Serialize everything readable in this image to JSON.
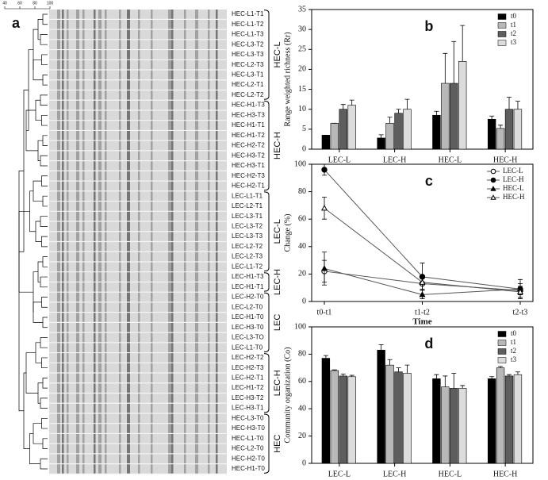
{
  "panel_a": {
    "label": "a",
    "scale_ticks": [
      40,
      60,
      80,
      100
    ],
    "lanes": [
      "HEC-L1-T1",
      "HEC-L1-T2",
      "HEC-L1-T3",
      "HEC-L3-T2",
      "HEC-L3-T3",
      "HEC-L2-T3",
      "HEC-L3-T1",
      "HEC-L2-T1",
      "HEC-L2-T2",
      "HEC-H1-T3",
      "HEC-H3-T3",
      "HEC-H1-T1",
      "HEC-H1-T2",
      "HEC-H2-T2",
      "HEC-H3-T2",
      "HEC-H3-T1",
      "HEC-H2-T3",
      "HEC-H2-T1",
      "LEC-L1-T1",
      "LEC-L2-T1",
      "LEC-L3-T1",
      "LEC-L3-T2",
      "LEC-L3-T3",
      "LEC-L2-T2",
      "LEC-L2-T3",
      "LEC-L1-T2",
      "LEC-H1-T3",
      "LEC-H1-T1",
      "LEC-H2-T0",
      "LEC-L2-T0",
      "LEC-H1-T0",
      "LEC-H3-T0",
      "LEC-L3-TO",
      "LEC-L1-T0",
      "LEC-H2-T2",
      "LEC-H2-T3",
      "LEC-H2-T1",
      "LEC-H1-T2",
      "LEC-H3-T2",
      "LEC-H3-T1",
      "HEC-L3-T0",
      "HEC-H3-T0",
      "HEC-L1-T0",
      "HEC-L2-T0",
      "HEC-H2-T0",
      "HEC-H1-T0"
    ],
    "groups": [
      "HEC-L",
      "HEC-H",
      "LEC-L",
      "LEC-H",
      "LEC",
      "LEC-H",
      "HEC"
    ]
  },
  "chart_data": [
    {
      "type": "bar",
      "label": "b",
      "ylabel": "Range weighted richness (Rr)",
      "categories": [
        "LEC-L",
        "LEC-H",
        "HEC-L",
        "HEC-H"
      ],
      "ylim": [
        0,
        35
      ],
      "yticks": [
        0,
        5,
        10,
        15,
        20,
        25,
        30,
        35
      ],
      "legend": "upper right",
      "series": [
        {
          "name": "t0",
          "color": "#000000",
          "values": [
            3.5,
            2.8,
            8.5,
            7.5
          ],
          "errors": [
            0,
            0.8,
            1,
            0.8
          ]
        },
        {
          "name": "t1",
          "color": "#b8b8b8",
          "values": [
            6.5,
            6.5,
            16.5,
            5.2
          ],
          "errors": [
            0,
            1.5,
            7.5,
            0.8
          ]
        },
        {
          "name": "t2",
          "color": "#5e5e5e",
          "values": [
            10,
            9,
            16.5,
            10
          ],
          "errors": [
            1.2,
            1,
            10.5,
            3
          ]
        },
        {
          "name": "t3",
          "color": "#dcdcdc",
          "values": [
            11,
            10,
            22,
            10
          ],
          "errors": [
            1.3,
            2.5,
            9,
            2
          ]
        }
      ]
    },
    {
      "type": "line",
      "label": "c",
      "ylabel": "Change (%)",
      "xlabel": "Time",
      "categories": [
        "t0-t1",
        "t1-t2",
        "t2-t3"
      ],
      "ylim": [
        0,
        100
      ],
      "yticks": [
        0,
        20,
        40,
        60,
        80,
        100
      ],
      "legend": "upper right",
      "series": [
        {
          "name": "LEC-L",
          "color": "#000000",
          "marker": "circle",
          "filled": false,
          "values": [
            22,
            13,
            8
          ],
          "errors": [
            8,
            5,
            3
          ]
        },
        {
          "name": "LEC-H",
          "color": "#000000",
          "marker": "circle",
          "filled": true,
          "values": [
            96,
            18,
            9
          ],
          "errors": [
            4,
            10,
            4
          ]
        },
        {
          "name": "HEC-L",
          "color": "#000000",
          "marker": "triangle",
          "filled": true,
          "values": [
            24,
            5,
            9
          ],
          "errors": [
            12,
            3,
            7
          ]
        },
        {
          "name": "HEC-H",
          "color": "#000000",
          "marker": "triangle",
          "filled": false,
          "values": [
            68,
            14,
            7
          ],
          "errors": [
            8,
            5,
            4
          ]
        }
      ]
    },
    {
      "type": "bar",
      "label": "d",
      "ylabel": "Community organization (Co)",
      "categories": [
        "LEC-L",
        "LEC-H",
        "HEC-L",
        "HEC-H"
      ],
      "ylim": [
        0,
        100
      ],
      "yticks": [
        0,
        20,
        40,
        60,
        80,
        100
      ],
      "legend": "upper right",
      "series": [
        {
          "name": "t0",
          "color": "#000000",
          "values": [
            77,
            83,
            62,
            62
          ],
          "errors": [
            2,
            4,
            3,
            1.5
          ]
        },
        {
          "name": "t1",
          "color": "#b8b8b8",
          "values": [
            68,
            72,
            56,
            70
          ],
          "errors": [
            0.5,
            4,
            8,
            1
          ]
        },
        {
          "name": "t2",
          "color": "#5e5e5e",
          "values": [
            64,
            67,
            55,
            64
          ],
          "errors": [
            1.5,
            3,
            11,
            1
          ]
        },
        {
          "name": "t3",
          "color": "#dcdcdc",
          "values": [
            63.5,
            66,
            55,
            65
          ],
          "errors": [
            1,
            6,
            2,
            2
          ]
        }
      ]
    }
  ]
}
